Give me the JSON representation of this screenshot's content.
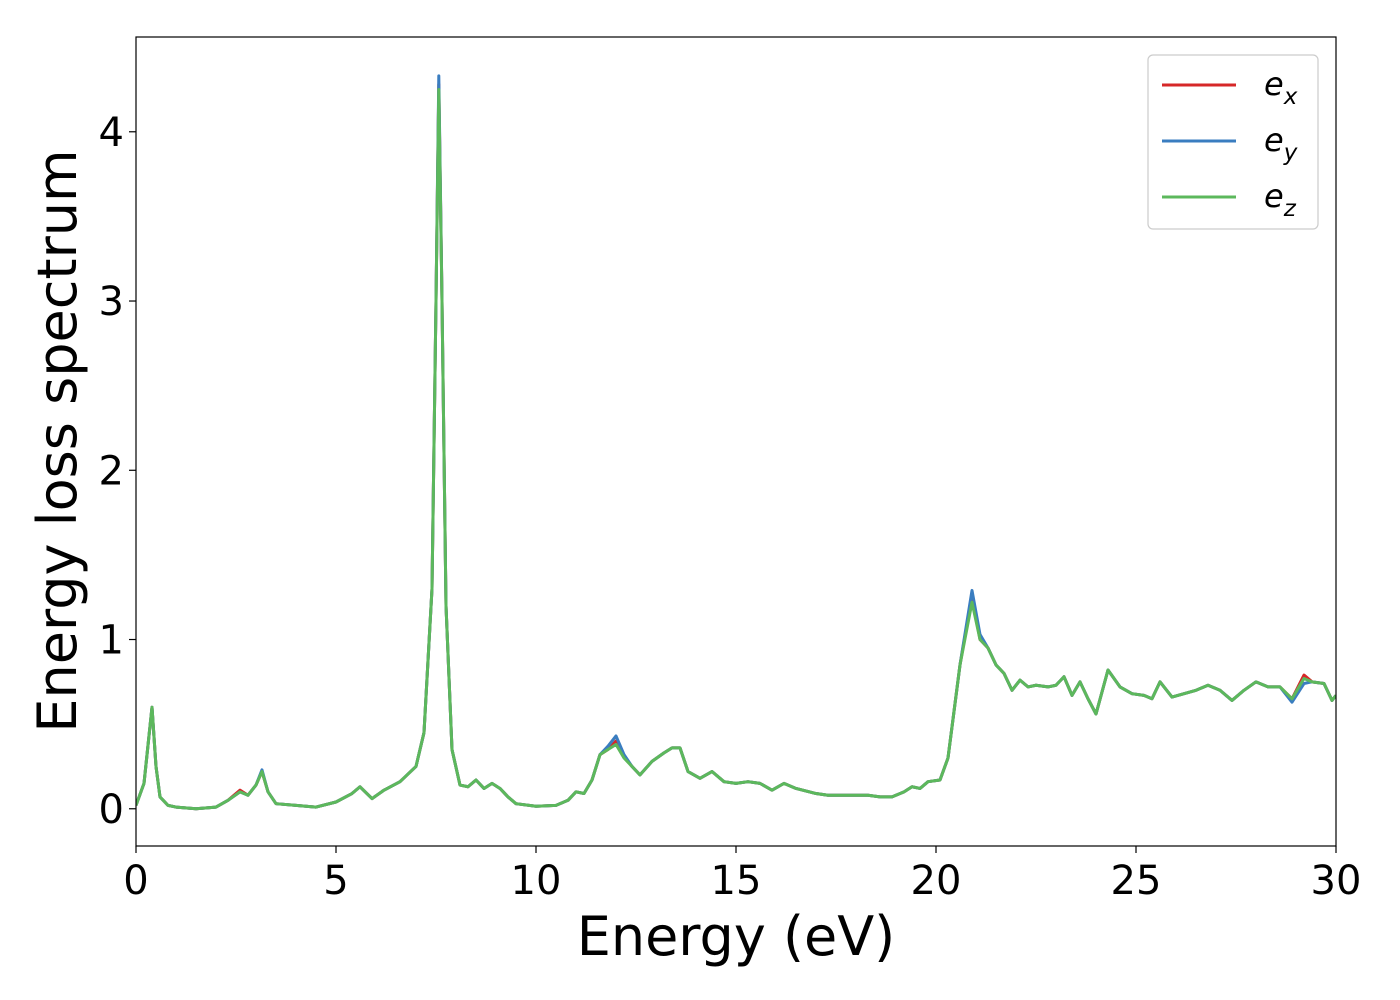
{
  "chart_data": {
    "type": "line",
    "xlabel": "Energy (eV)",
    "ylabel": "Energy loss spectrum",
    "xlim": [
      0,
      30
    ],
    "xticks": [
      0,
      5,
      10,
      15,
      20,
      25,
      30
    ],
    "ylim": [
      -0.22,
      4.56
    ],
    "yticks": [
      0,
      1,
      2,
      3,
      4
    ],
    "legend": "upper right",
    "x": [
      0,
      0.2,
      0.4,
      0.5,
      0.6,
      0.8,
      1,
      1.5,
      2,
      2.3,
      2.6,
      2.8,
      3,
      3.15,
      3.3,
      3.5,
      4,
      4.5,
      5,
      5.4,
      5.6,
      5.9,
      6.2,
      6.6,
      7,
      7.2,
      7.4,
      7.5,
      7.57,
      7.65,
      7.75,
      7.9,
      8.1,
      8.3,
      8.5,
      8.7,
      8.9,
      9.1,
      9.3,
      9.5,
      10,
      10.5,
      10.8,
      11,
      11.2,
      11.4,
      11.6,
      11.8,
      12,
      12.2,
      12.4,
      12.6,
      12.9,
      13.2,
      13.4,
      13.6,
      13.8,
      14.1,
      14.4,
      14.7,
      15,
      15.3,
      15.6,
      15.9,
      16.2,
      16.5,
      17,
      17.3,
      17.8,
      18.3,
      18.6,
      18.9,
      19.2,
      19.4,
      19.6,
      19.8,
      20.1,
      20.3,
      20.6,
      20.9,
      21.1,
      21.3,
      21.5,
      21.7,
      21.9,
      22.1,
      22.3,
      22.5,
      22.8,
      23,
      23.2,
      23.4,
      23.6,
      23.8,
      24,
      24.3,
      24.6,
      24.9,
      25.2,
      25.4,
      25.6,
      25.9,
      26.2,
      26.5,
      26.8,
      27.1,
      27.4,
      27.7,
      28,
      28.3,
      28.6,
      28.9,
      29.2,
      29.4,
      29.7,
      29.9,
      30
    ],
    "series": [
      {
        "name": "e_x",
        "color": "#d62728",
        "values": [
          0.02,
          0.15,
          0.6,
          0.25,
          0.07,
          0.02,
          0.01,
          0,
          0.01,
          0.05,
          0.11,
          0.08,
          0.14,
          0.22,
          0.1,
          0.03,
          0.02,
          0.01,
          0.04,
          0.09,
          0.13,
          0.06,
          0.11,
          0.16,
          0.25,
          0.45,
          1.3,
          3.0,
          4.28,
          3.0,
          1.2,
          0.35,
          0.14,
          0.13,
          0.17,
          0.12,
          0.15,
          0.12,
          0.07,
          0.03,
          0.015,
          0.02,
          0.05,
          0.1,
          0.09,
          0.17,
          0.32,
          0.35,
          0.4,
          0.31,
          0.25,
          0.2,
          0.28,
          0.33,
          0.36,
          0.36,
          0.22,
          0.18,
          0.22,
          0.16,
          0.15,
          0.16,
          0.15,
          0.11,
          0.15,
          0.12,
          0.09,
          0.08,
          0.08,
          0.08,
          0.07,
          0.07,
          0.1,
          0.13,
          0.12,
          0.16,
          0.17,
          0.3,
          0.85,
          1.26,
          1.0,
          0.95,
          0.85,
          0.8,
          0.7,
          0.76,
          0.72,
          0.73,
          0.72,
          0.73,
          0.78,
          0.67,
          0.75,
          0.65,
          0.56,
          0.82,
          0.72,
          0.68,
          0.67,
          0.65,
          0.75,
          0.66,
          0.68,
          0.7,
          0.73,
          0.7,
          0.64,
          0.7,
          0.75,
          0.72,
          0.72,
          0.65,
          0.79,
          0.75,
          0.74,
          0.64,
          0.67
        ]
      },
      {
        "name": "e_y",
        "color": "#3a7dc0",
        "values": [
          0.02,
          0.15,
          0.6,
          0.25,
          0.07,
          0.02,
          0.01,
          0,
          0.01,
          0.05,
          0.1,
          0.08,
          0.14,
          0.23,
          0.1,
          0.03,
          0.02,
          0.01,
          0.04,
          0.09,
          0.13,
          0.06,
          0.11,
          0.16,
          0.25,
          0.45,
          1.3,
          3.0,
          4.33,
          3.0,
          1.2,
          0.35,
          0.14,
          0.13,
          0.17,
          0.12,
          0.15,
          0.12,
          0.07,
          0.03,
          0.015,
          0.02,
          0.05,
          0.1,
          0.09,
          0.17,
          0.32,
          0.37,
          0.43,
          0.32,
          0.25,
          0.2,
          0.28,
          0.33,
          0.36,
          0.36,
          0.22,
          0.18,
          0.22,
          0.16,
          0.15,
          0.16,
          0.15,
          0.11,
          0.15,
          0.12,
          0.09,
          0.08,
          0.08,
          0.08,
          0.07,
          0.07,
          0.1,
          0.13,
          0.12,
          0.16,
          0.17,
          0.3,
          0.85,
          1.29,
          1.03,
          0.95,
          0.85,
          0.8,
          0.7,
          0.76,
          0.72,
          0.73,
          0.72,
          0.73,
          0.78,
          0.67,
          0.75,
          0.65,
          0.56,
          0.82,
          0.72,
          0.68,
          0.67,
          0.65,
          0.75,
          0.66,
          0.68,
          0.7,
          0.73,
          0.7,
          0.64,
          0.7,
          0.75,
          0.72,
          0.72,
          0.63,
          0.74,
          0.75,
          0.74,
          0.64,
          0.67
        ]
      },
      {
        "name": "e_z",
        "color": "#5cb85c",
        "values": [
          0.02,
          0.15,
          0.6,
          0.25,
          0.07,
          0.02,
          0.01,
          0,
          0.01,
          0.05,
          0.1,
          0.08,
          0.14,
          0.22,
          0.1,
          0.03,
          0.02,
          0.01,
          0.04,
          0.09,
          0.13,
          0.06,
          0.11,
          0.16,
          0.25,
          0.45,
          1.3,
          3.0,
          4.25,
          3.0,
          1.2,
          0.35,
          0.14,
          0.13,
          0.17,
          0.12,
          0.15,
          0.12,
          0.07,
          0.03,
          0.015,
          0.02,
          0.05,
          0.1,
          0.09,
          0.17,
          0.32,
          0.35,
          0.38,
          0.3,
          0.25,
          0.2,
          0.28,
          0.33,
          0.36,
          0.36,
          0.22,
          0.18,
          0.22,
          0.16,
          0.15,
          0.16,
          0.15,
          0.11,
          0.15,
          0.12,
          0.09,
          0.08,
          0.08,
          0.08,
          0.07,
          0.07,
          0.1,
          0.13,
          0.12,
          0.16,
          0.17,
          0.3,
          0.85,
          1.22,
          1.0,
          0.95,
          0.85,
          0.8,
          0.7,
          0.76,
          0.72,
          0.73,
          0.72,
          0.73,
          0.78,
          0.67,
          0.75,
          0.65,
          0.56,
          0.82,
          0.72,
          0.68,
          0.67,
          0.65,
          0.75,
          0.66,
          0.68,
          0.7,
          0.73,
          0.7,
          0.64,
          0.7,
          0.75,
          0.72,
          0.72,
          0.65,
          0.77,
          0.75,
          0.74,
          0.64,
          0.67
        ]
      }
    ]
  }
}
